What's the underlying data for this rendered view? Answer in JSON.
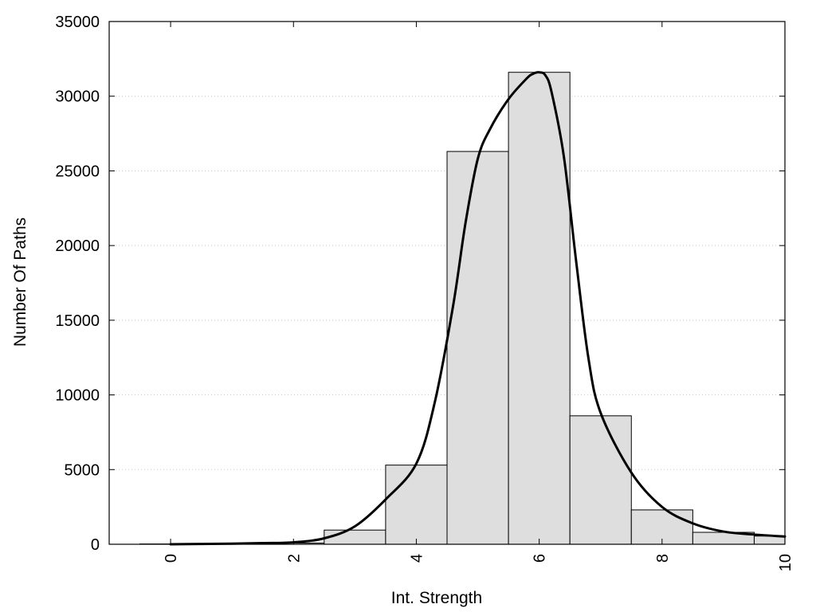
{
  "chart_data": {
    "type": "bar",
    "xlabel": "Int. Strength",
    "ylabel": "Number Of Paths",
    "xlim": [
      -1,
      10
    ],
    "ylim": [
      0,
      35000
    ],
    "xticks": [
      0,
      2,
      4,
      6,
      8,
      10
    ],
    "yticks": [
      0,
      5000,
      10000,
      15000,
      20000,
      25000,
      30000,
      35000
    ],
    "grid": "horizontal-dotted",
    "legend": "none",
    "colors": {
      "bar_fill": "#dedede",
      "bar_edge": "#000000",
      "curve": "#000000"
    },
    "bins": {
      "centers": [
        0,
        1,
        2,
        3,
        4,
        5,
        6,
        7,
        8,
        9,
        10
      ],
      "width": 1,
      "values": [
        20,
        40,
        80,
        950,
        5300,
        26300,
        31600,
        8600,
        2300,
        800,
        550
      ]
    },
    "curve": {
      "x": [
        0,
        0.5,
        1,
        1.5,
        2,
        2.5,
        3,
        3.5,
        4,
        4.3,
        4.6,
        4.8,
        5,
        5.2,
        5.5,
        5.8,
        5.9,
        6,
        6.1,
        6.2,
        6.4,
        6.6,
        6.8,
        7,
        7.5,
        8,
        8.5,
        9,
        9.5,
        10
      ],
      "y": [
        0,
        20,
        40,
        80,
        130,
        400,
        1200,
        3000,
        5400,
        9500,
        16000,
        21500,
        25800,
        27800,
        29800,
        31200,
        31500,
        31600,
        31400,
        30300,
        26000,
        19000,
        12500,
        8800,
        4800,
        2500,
        1400,
        850,
        650,
        520
      ]
    }
  }
}
